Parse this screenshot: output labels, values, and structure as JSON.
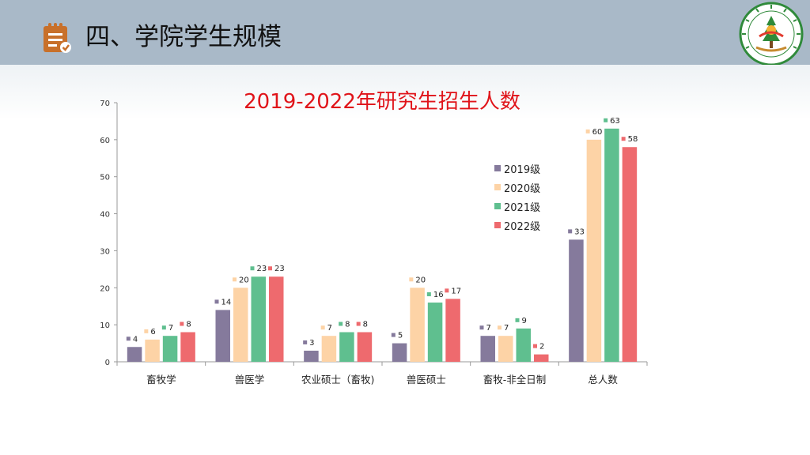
{
  "header": {
    "title": "四、学院学生规模"
  },
  "chart_data": {
    "type": "bar",
    "title": "2019-2022年研究生招生人数",
    "xlabel": "",
    "ylabel": "",
    "ylim": [
      0,
      70
    ],
    "yticks": [
      0,
      10,
      20,
      30,
      40,
      50,
      60,
      70
    ],
    "grid": false,
    "legend_position": "right-inside",
    "categories": [
      "畜牧学",
      "兽医学",
      "农业硕士（畜牧)",
      "兽医硕士",
      "畜牧-非全日制",
      "总人数"
    ],
    "series": [
      {
        "name": "2019级",
        "color": "#857a9c",
        "values": [
          4,
          14,
          3,
          5,
          7,
          33
        ]
      },
      {
        "name": "2020级",
        "color": "#fdd3a6",
        "values": [
          6,
          20,
          7,
          20,
          7,
          60
        ]
      },
      {
        "name": "2021级",
        "color": "#5fbf8f",
        "values": [
          7,
          23,
          8,
          16,
          9,
          63
        ]
      },
      {
        "name": "2022级",
        "color": "#ee6a6e",
        "values": [
          8,
          23,
          8,
          17,
          2,
          58
        ]
      }
    ]
  }
}
